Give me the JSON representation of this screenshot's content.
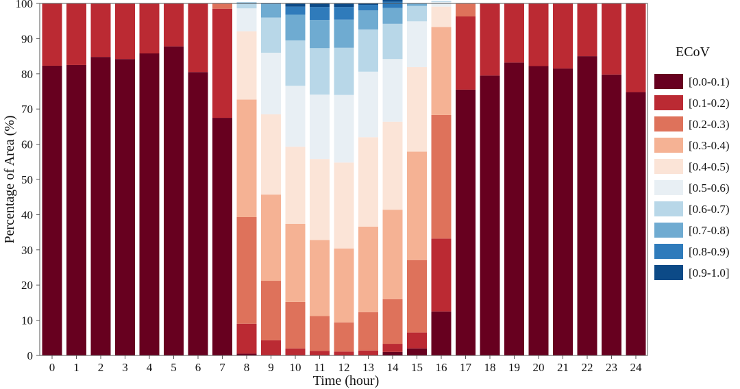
{
  "chart_data": {
    "type": "bar",
    "stacked": true,
    "title": "",
    "xlabel": "Time (hour)",
    "ylabel": "Percentage of Area (%)",
    "ylim": [
      0,
      100
    ],
    "yticks": [
      0,
      10,
      20,
      30,
      40,
      50,
      60,
      70,
      80,
      90,
      100
    ],
    "legend_title": "ECoV",
    "legend_position": "right",
    "categories": [
      "0",
      "1",
      "2",
      "3",
      "4",
      "5",
      "6",
      "7",
      "8",
      "9",
      "10",
      "11",
      "12",
      "13",
      "14",
      "15",
      "16",
      "17",
      "18",
      "19",
      "20",
      "21",
      "22",
      "23",
      "24"
    ],
    "series": [
      {
        "name": "[0.0-0.1)",
        "color": "#67001f",
        "values": [
          82.3,
          82.5,
          84.8,
          84.2,
          85.8,
          87.8,
          80.5,
          67.5,
          0.5,
          0,
          0,
          0,
          0,
          0,
          1.0,
          2.0,
          12.5,
          75.5,
          79.5,
          83.2,
          82.2,
          81.5,
          85.0,
          79.8,
          74.8
        ]
      },
      {
        "name": "[0.1-0.2)",
        "color": "#bb2a33",
        "values": [
          17.7,
          17.5,
          15.2,
          15.8,
          14.2,
          12.2,
          19.5,
          31.0,
          8.5,
          4.3,
          2.0,
          1.3,
          1.1,
          1.4,
          2.3,
          4.5,
          20.7,
          20.8,
          20.5,
          16.8,
          17.8,
          18.5,
          15.0,
          20.2,
          25.2
        ]
      },
      {
        "name": "[0.2-0.3)",
        "color": "#de725b",
        "values": [
          0,
          0,
          0,
          0,
          0,
          0,
          0,
          1.5,
          30.3,
          16.9,
          13.2,
          9.9,
          8.3,
          10.9,
          12.7,
          20.6,
          35.1,
          3.7,
          0,
          0,
          0,
          0,
          0,
          0,
          0
        ]
      },
      {
        "name": "[0.3-0.4)",
        "color": "#f5b294",
        "values": [
          0,
          0,
          0,
          0,
          0,
          0,
          0,
          0,
          33.4,
          24.5,
          22.2,
          21.6,
          21.0,
          24.3,
          25.4,
          30.8,
          25.0,
          0,
          0,
          0,
          0,
          0,
          0,
          0,
          0
        ]
      },
      {
        "name": "[0.4-0.5)",
        "color": "#fbe4d7",
        "values": [
          0,
          0,
          0,
          0,
          0,
          0,
          0,
          0,
          19.4,
          22.8,
          21.9,
          23.0,
          24.4,
          25.4,
          25.0,
          24.0,
          5.8,
          0,
          0,
          0,
          0,
          0,
          0,
          0,
          0
        ]
      },
      {
        "name": "[0.5-0.6)",
        "color": "#e8eff4",
        "values": [
          0,
          0,
          0,
          0,
          0,
          0,
          0,
          0,
          6.5,
          17.5,
          17.3,
          18.3,
          19.2,
          18.6,
          17.8,
          13.0,
          1.3,
          0,
          0,
          0,
          0,
          0,
          0,
          0,
          0
        ]
      },
      {
        "name": "[0.6-0.7)",
        "color": "#b8d7e8",
        "values": [
          0,
          0,
          0,
          0,
          0,
          0,
          0,
          0,
          1.4,
          10.0,
          12.9,
          13.2,
          13.4,
          12.0,
          10.0,
          4.4,
          0.3,
          0,
          0,
          0,
          0,
          0,
          0,
          0,
          0
        ]
      },
      {
        "name": "[0.7-0.8)",
        "color": "#6fabd1",
        "values": [
          0,
          0,
          0,
          0,
          0,
          0,
          0,
          0,
          0.3,
          3.8,
          7.3,
          8.0,
          8.0,
          5.4,
          4.5,
          0.7,
          0,
          0,
          0,
          0,
          0,
          0,
          0,
          0,
          0
        ]
      },
      {
        "name": "[0.8-0.9)",
        "color": "#2f7bbb",
        "values": [
          0,
          0,
          0,
          0,
          0,
          0,
          0,
          0,
          0,
          0.2,
          2.3,
          3.7,
          3.6,
          1.6,
          1.8,
          0,
          0,
          0,
          0,
          0,
          0,
          0,
          0,
          0,
          0
        ]
      },
      {
        "name": "[0.9-1.0]",
        "color": "#0c4a87",
        "values": [
          0,
          0,
          0,
          0,
          0,
          0,
          0,
          0,
          0,
          0,
          0.9,
          1.0,
          1.0,
          0.4,
          0.5,
          0,
          0,
          0,
          0,
          0,
          0,
          0,
          0,
          0,
          0
        ]
      }
    ]
  }
}
